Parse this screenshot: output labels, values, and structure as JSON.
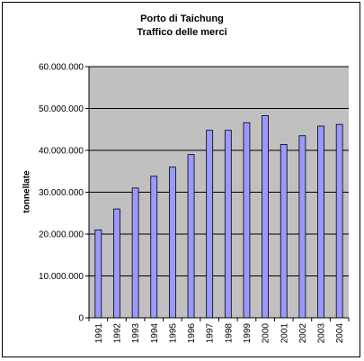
{
  "chart_data": {
    "type": "bar",
    "title": "Porto di Taichung",
    "subtitle": "Traffico delle merci",
    "xlabel": "",
    "ylabel": "tonnellate",
    "categories": [
      "1991",
      "1992",
      "1993",
      "1994",
      "1995",
      "1996",
      "1997",
      "1998",
      "1999",
      "2000",
      "2001",
      "2002",
      "2003",
      "2004"
    ],
    "series": [
      {
        "values": [
          21000000,
          26000000,
          31000000,
          33800000,
          36000000,
          39000000,
          44800000,
          44800000,
          46600000,
          48300000,
          41400000,
          43500000,
          45800000,
          46200000
        ]
      }
    ],
    "ylim": [
      0,
      60000000
    ],
    "yticks": [
      0,
      10000000,
      20000000,
      30000000,
      40000000,
      50000000,
      60000000
    ],
    "ytick_labels": [
      "0",
      "10.000.000",
      "20.000.000",
      "30.000.000",
      "40.000.000",
      "50.000.000",
      "60.000.000"
    ],
    "grid": true,
    "legend": "none",
    "colors": {
      "plot_background": "#c0c0c0",
      "bar_fill": "#9999ff",
      "bar_stroke": "#000000",
      "gridline": "#000000"
    }
  }
}
